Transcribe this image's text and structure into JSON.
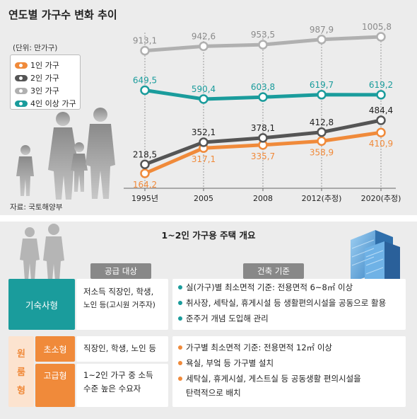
{
  "header": {
    "title": "연도별 가구수 변화 추이",
    "unit": "(단위: 만가구)",
    "source": "자료: 국토해양부"
  },
  "colors": {
    "one": "#f08a3a",
    "two": "#555555",
    "three": "#b0b0b0",
    "four": "#1a9c9c"
  },
  "chart_data": {
    "type": "line",
    "categories": [
      "1995년",
      "2005",
      "2008",
      "2012(추정)",
      "2020(추정)"
    ],
    "series": [
      {
        "name": "1인 가구",
        "values": [
          164.2,
          317.1,
          335.7,
          358.9,
          410.9
        ]
      },
      {
        "name": "2인 가구",
        "values": [
          218.5,
          352.1,
          378.1,
          412.8,
          484.4
        ]
      },
      {
        "name": "3인 가구",
        "values": [
          913.1,
          942.6,
          953.5,
          987.9,
          1005.8
        ]
      },
      {
        "name": "4인 이상 가구",
        "values": [
          649.5,
          590.4,
          603.8,
          619.7,
          619.2
        ]
      }
    ],
    "labels": [
      [
        "164,2",
        "317,1",
        "335,7",
        "358,9",
        "410,9"
      ],
      [
        "218,5",
        "352,1",
        "378,1",
        "412,8",
        "484,4"
      ],
      [
        "913,1",
        "942,6",
        "953,5",
        "987,9",
        "1005,8"
      ],
      [
        "649,5",
        "590,4",
        "603,8",
        "619,7",
        "619,2"
      ]
    ],
    "legend_position": "left"
  },
  "overview": {
    "title": "1~2인 가구용 주택 개요",
    "supply_header": "공급 대상",
    "building_header": "건축 기준",
    "dorm": {
      "label": "기숙사형",
      "target": [
        "저소득 직장인, 학생,",
        "노인 등(고시원 거주자)"
      ],
      "items": [
        "실(가구)별 최소면적 기준: 전용면적 6~8㎡ 이상",
        "취사장, 세탁실, 휴게시설 등 생활편의시설을 공동으로 활용",
        "준주거 개념 도입해 관리"
      ]
    },
    "studio": {
      "label": [
        "원",
        "룸",
        "형"
      ],
      "small_label": "초소형",
      "small_target": "직장인, 학생, 노인 등",
      "high_label": "고급형",
      "high_target": [
        "1~2인 가구 중 소득",
        "수준 높은 수요자"
      ],
      "items": [
        "가구별 최소면적 기준: 전용면적 12㎡ 이상",
        "욕실, 부엌 등 가구별 설치",
        "세탁실, 휴게시설, 게스트실 등 공동생활 편의시설을",
        "탄력적으로 배치"
      ]
    }
  }
}
